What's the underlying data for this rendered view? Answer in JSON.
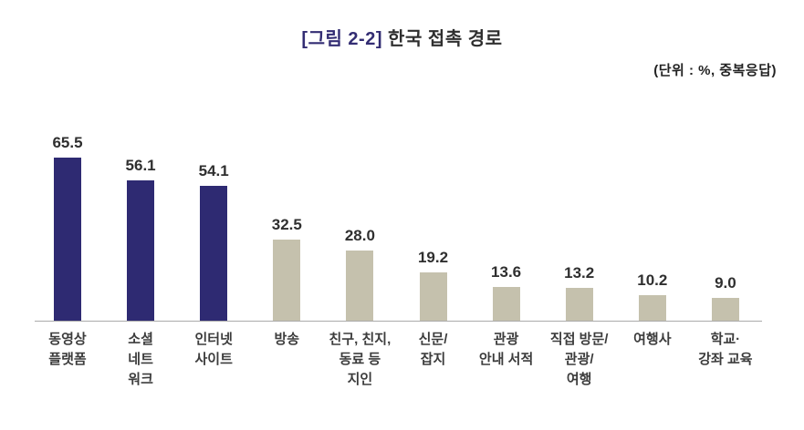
{
  "title": {
    "prefix": "[그림 2-2]",
    "main": " 한국 접촉 경로"
  },
  "unit_note": "(단위 : %, 중복응답)",
  "colors": {
    "bar_primary": "#2e2a72",
    "bar_secondary": "#c5c1ad",
    "title_accent": "#332d73",
    "axis_line": "#aaaaaa",
    "value_text": "#2f2f2f",
    "category_text": "#3c3c3c"
  },
  "chart_data": {
    "type": "bar",
    "title": "[그림 2-2] 한국 접촉 경로",
    "unit": "(단위 : %, 중복응답)",
    "categories": [
      "동영상\n플랫폼",
      "소셜\n네트\n워크",
      "인터넷\n사이트",
      "방송",
      "친구, 친지,\n동료 등\n지인",
      "신문/\n잡지",
      "관광\n안내 서적",
      "직접 방문/\n관광/\n여행",
      "여행사",
      "학교·\n강좌 교육"
    ],
    "values": [
      65.5,
      56.1,
      54.1,
      32.5,
      28.0,
      19.2,
      13.6,
      13.2,
      10.2,
      9.0
    ],
    "value_labels": [
      "65.5",
      "56.1",
      "54.1",
      "32.5",
      "28.0",
      "19.2",
      "13.6",
      "13.2",
      "10.2",
      "9.0"
    ],
    "highlighted_bar_count": 3,
    "xlabel": "",
    "ylabel": "",
    "ylim": [
      0,
      70
    ],
    "grid": false,
    "legend": false,
    "value_labels_shown": true
  }
}
